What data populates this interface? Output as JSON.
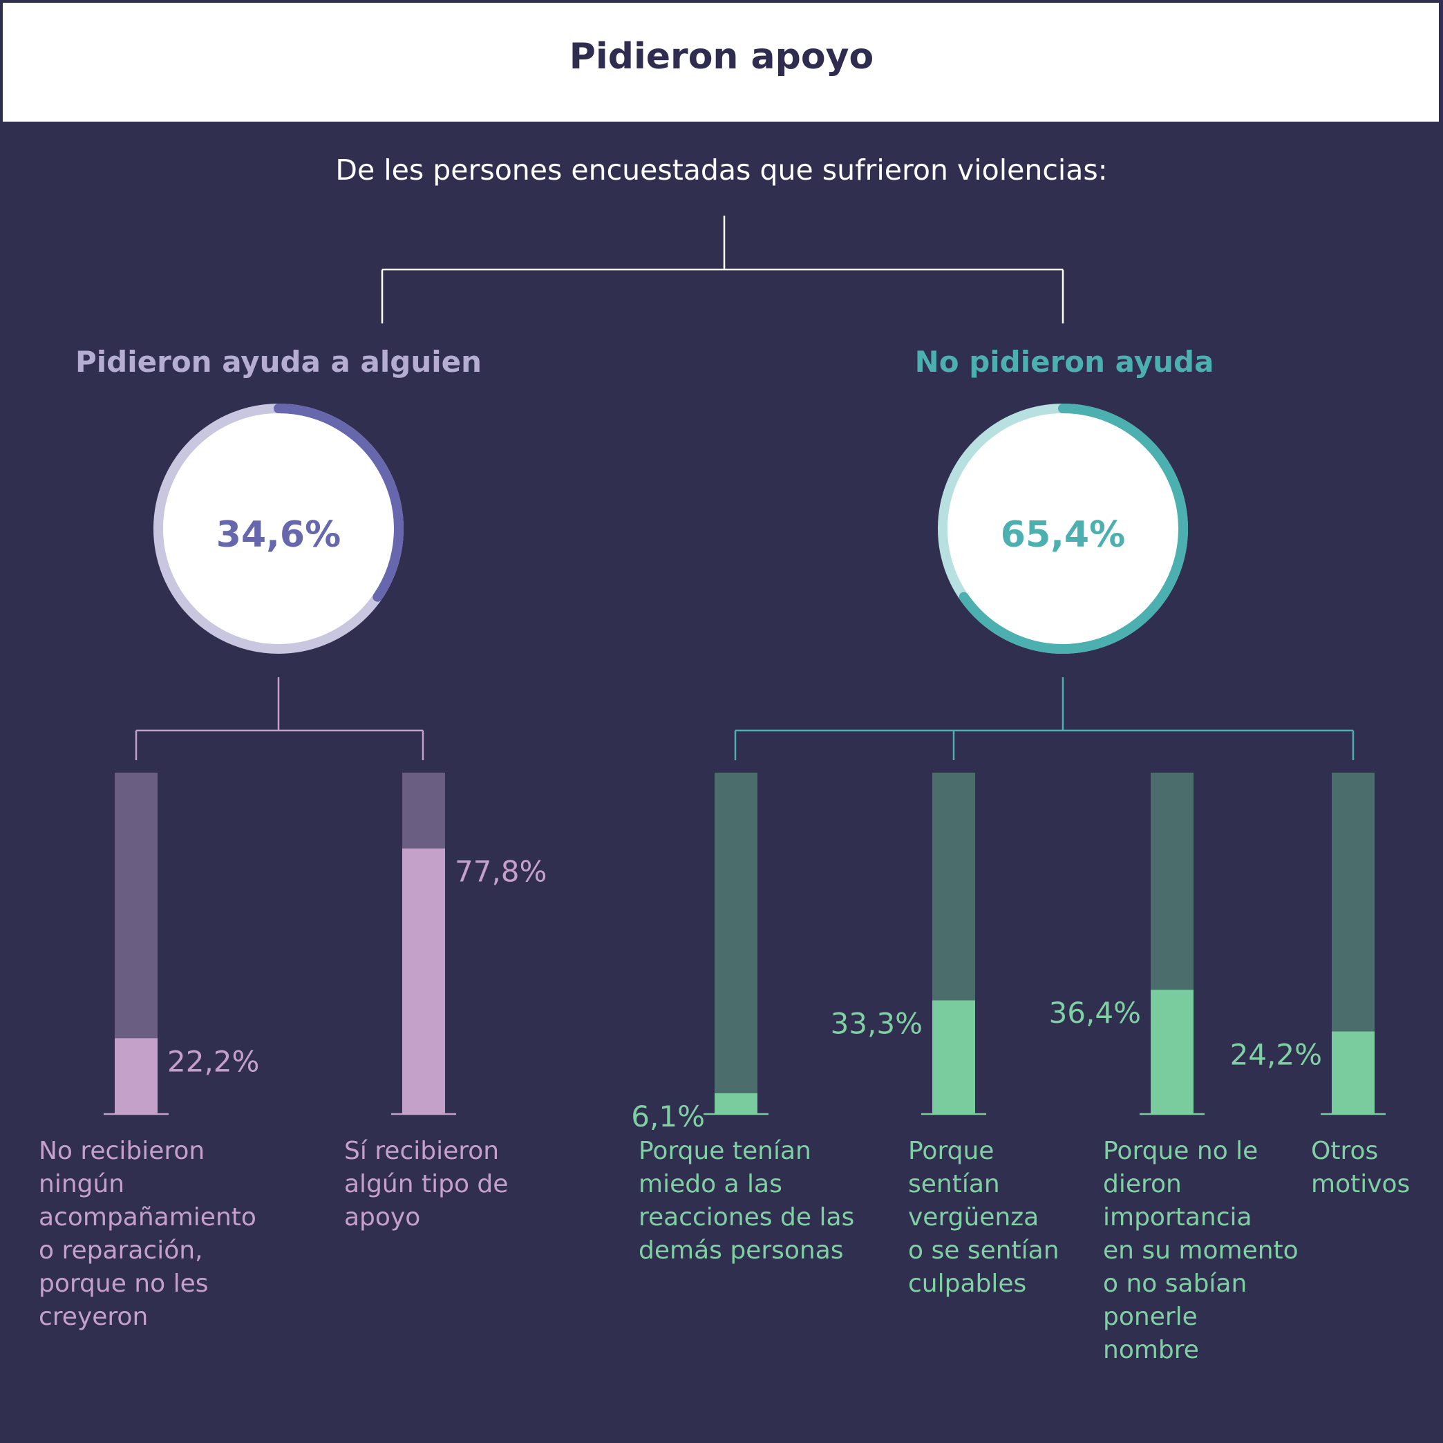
{
  "title": "Pidieron apoyo",
  "subtitle": "De les persones encuestadas que sufrieron violencias:",
  "colors": {
    "background": "#312f50",
    "lavender": "#c4a1c9",
    "lavender_dark": "#6b5e83",
    "purple_ring": "#6767ad",
    "purple_ring_light": "#c9c7e0",
    "teal_ring": "#4cb0b0",
    "teal_ring_light": "#b9e0e0",
    "mint": "#7acc9f",
    "mint_dark": "#4b6e6c"
  },
  "chart_data": [
    {
      "type": "pie",
      "title": "Pidieron ayuda a alguien",
      "value": 34.6,
      "value_label": "34,6%"
    },
    {
      "type": "pie",
      "title": "No pidieron ayuda",
      "value": 65.4,
      "value_label": "65,4%"
    },
    {
      "type": "bar",
      "group": "Pidieron ayuda a alguien",
      "ylim": [
        0,
        100
      ],
      "categories": [
        "No recibieron\nningún\nacompañamiento\no reparación,\nporque no les\ncreyeron",
        "Sí recibieron\nalgún tipo de\napoyo"
      ],
      "values": [
        22.2,
        77.8
      ],
      "value_labels": [
        "22,2%",
        "77,8%"
      ]
    },
    {
      "type": "bar",
      "group": "No pidieron ayuda",
      "ylim": [
        0,
        100
      ],
      "categories": [
        "Porque tenían\nmiedo a las\nreacciones de las\ndemás personas",
        "Porque\nsentían\nvergüenza\no se sentían\nculpables",
        "Porque no le\ndieron\nimportancia\nen su momento\no no sabían\nponerle\nnombre",
        "Otros\nmotivos"
      ],
      "values": [
        6.1,
        33.3,
        36.4,
        24.2
      ],
      "value_labels": [
        "6,1%",
        "33,3%",
        "36,4%",
        "24,2%"
      ]
    }
  ]
}
